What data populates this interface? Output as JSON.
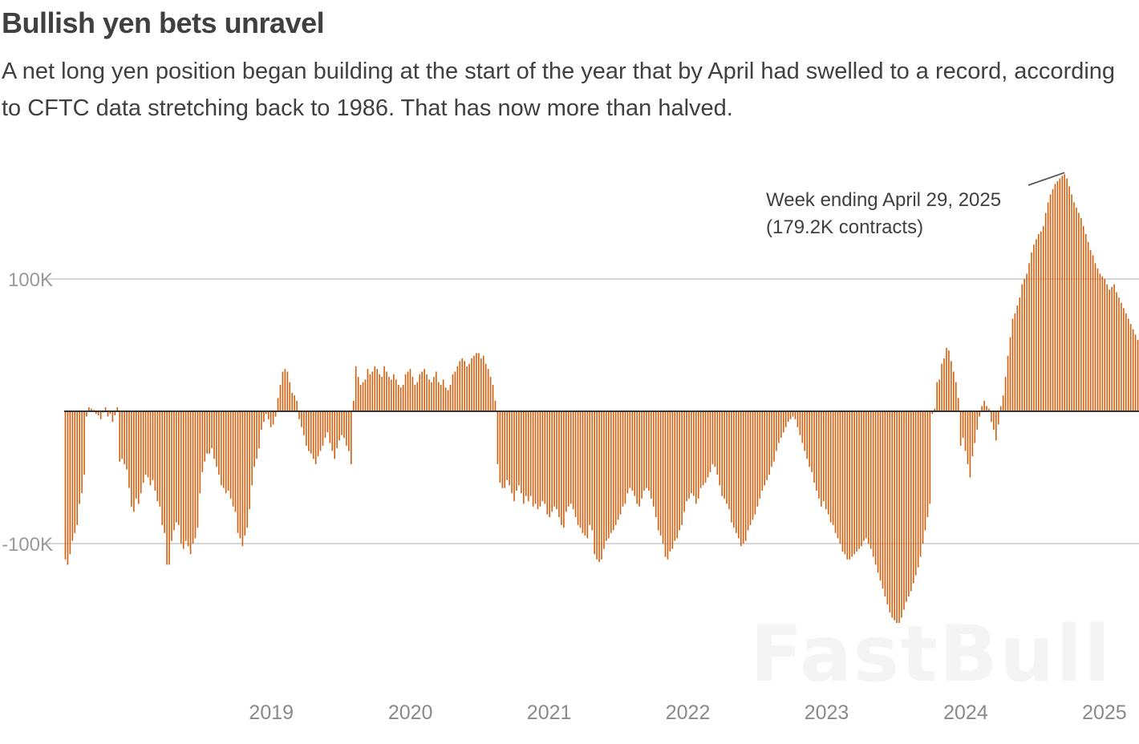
{
  "header": {
    "title": "Bullish yen bets unravel",
    "subtitle": "A net long yen position began building at the start of the year that by April had swelled to a record, according to CFTC data stretching back to 1986. That has now more than halved."
  },
  "watermark": {
    "text": "FastBull"
  },
  "chart_data": {
    "type": "bar",
    "title": "Bullish yen bets unravel",
    "ylim": [
      -170000,
      180000
    ],
    "y_ticks": [
      100000,
      -100000
    ],
    "y_tick_labels": [
      "100K",
      "-100K"
    ],
    "x_range": [
      "2018-01-02",
      "2025-09-30"
    ],
    "x_ticks": [
      "2019",
      "2020",
      "2021",
      "2022",
      "2023",
      "2024",
      "2025"
    ],
    "grid": true,
    "bar_color": "#d4600f",
    "zero_line_color": "#333333",
    "annotation": {
      "line1": "Week ending April 29, 2025",
      "line2": "(179.2K contracts)",
      "date": "2025-04-29",
      "value": 179200
    },
    "series": [
      {
        "start_date": "2018-01-02",
        "frequency": "weekly",
        "values": [
          -112000,
          -116000,
          -108000,
          -98000,
          -92000,
          -86000,
          -70000,
          -62000,
          -48000,
          -4000,
          3000,
          2000,
          1000,
          -2000,
          -3000,
          -6000,
          -1000,
          3000,
          -4000,
          -2000,
          -8000,
          -3000,
          3000,
          -38000,
          -36000,
          -40000,
          -44000,
          -58000,
          -72000,
          -76000,
          -66000,
          -70000,
          -62000,
          -54000,
          -48000,
          -50000,
          -56000,
          -52000,
          -60000,
          -68000,
          -72000,
          -86000,
          -92000,
          -116000,
          -116000,
          -98000,
          -90000,
          -84000,
          -86000,
          -100000,
          -104000,
          -98000,
          -102000,
          -108000,
          -100000,
          -96000,
          -88000,
          -62000,
          -46000,
          -38000,
          -32000,
          -32000,
          -28000,
          -36000,
          -42000,
          -48000,
          -56000,
          -58000,
          -62000,
          -60000,
          -66000,
          -72000,
          -76000,
          -92000,
          -96000,
          -102000,
          -94000,
          -88000,
          -74000,
          -56000,
          -42000,
          -36000,
          -28000,
          -14000,
          -8000,
          -2000,
          -6000,
          -12000,
          -10000,
          -4000,
          10000,
          20000,
          30000,
          32000,
          30000,
          22000,
          14000,
          12000,
          8000,
          -6000,
          -12000,
          -18000,
          -26000,
          -30000,
          -32000,
          -36000,
          -40000,
          -34000,
          -30000,
          -26000,
          -20000,
          -16000,
          -24000,
          -30000,
          -36000,
          -28000,
          -22000,
          -18000,
          -20000,
          -26000,
          -30000,
          -40000,
          8000,
          34000,
          26000,
          20000,
          22000,
          24000,
          32000,
          28000,
          30000,
          34000,
          32000,
          28000,
          26000,
          34000,
          30000,
          26000,
          24000,
          28000,
          24000,
          20000,
          18000,
          20000,
          28000,
          30000,
          32000,
          26000,
          20000,
          22000,
          28000,
          30000,
          32000,
          28000,
          24000,
          22000,
          26000,
          30000,
          22000,
          20000,
          24000,
          18000,
          16000,
          20000,
          28000,
          30000,
          34000,
          38000,
          40000,
          38000,
          34000,
          36000,
          40000,
          42000,
          44000,
          44000,
          40000,
          42000,
          36000,
          32000,
          26000,
          20000,
          8000,
          -40000,
          -54000,
          -58000,
          -58000,
          -52000,
          -56000,
          -62000,
          -68000,
          -60000,
          -56000,
          -62000,
          -70000,
          -64000,
          -68000,
          -64000,
          -72000,
          -70000,
          -74000,
          -72000,
          -68000,
          -70000,
          -78000,
          -80000,
          -76000,
          -72000,
          -74000,
          -80000,
          -86000,
          -88000,
          -76000,
          -72000,
          -70000,
          -74000,
          -80000,
          -86000,
          -88000,
          -92000,
          -94000,
          -96000,
          -86000,
          -90000,
          -108000,
          -112000,
          -114000,
          -112000,
          -104000,
          -98000,
          -96000,
          -92000,
          -90000,
          -86000,
          -82000,
          -78000,
          -72000,
          -70000,
          -62000,
          -58000,
          -60000,
          -64000,
          -70000,
          -72000,
          -66000,
          -60000,
          -58000,
          -60000,
          -66000,
          -72000,
          -80000,
          -90000,
          -94000,
          -100000,
          -110000,
          -112000,
          -106000,
          -104000,
          -98000,
          -96000,
          -90000,
          -86000,
          -76000,
          -68000,
          -66000,
          -62000,
          -64000,
          -70000,
          -66000,
          -58000,
          -56000,
          -54000,
          -50000,
          -46000,
          -40000,
          -42000,
          -48000,
          -56000,
          -64000,
          -66000,
          -70000,
          -74000,
          -84000,
          -88000,
          -92000,
          -96000,
          -102000,
          -100000,
          -98000,
          -90000,
          -86000,
          -82000,
          -78000,
          -72000,
          -66000,
          -60000,
          -56000,
          -52000,
          -48000,
          -42000,
          -38000,
          -30000,
          -24000,
          -20000,
          -16000,
          -12000,
          -8000,
          -6000,
          -4000,
          -6000,
          -12000,
          -18000,
          -24000,
          -30000,
          -36000,
          -42000,
          -46000,
          -54000,
          -60000,
          -66000,
          -72000,
          -68000,
          -74000,
          -78000,
          -84000,
          -86000,
          -92000,
          -96000,
          -100000,
          -106000,
          -108000,
          -112000,
          -112000,
          -110000,
          -108000,
          -106000,
          -104000,
          -102000,
          -98000,
          -96000,
          -100000,
          -104000,
          -110000,
          -116000,
          -122000,
          -128000,
          -134000,
          -140000,
          -146000,
          -152000,
          -156000,
          -158000,
          -160000,
          -160000,
          -156000,
          -150000,
          -144000,
          -140000,
          -136000,
          -130000,
          -124000,
          -118000,
          -110000,
          -100000,
          -90000,
          -80000,
          -70000,
          -2000,
          2000,
          22000,
          24000,
          36000,
          40000,
          48000,
          46000,
          38000,
          30000,
          22000,
          10000,
          -26000,
          -20000,
          -30000,
          -40000,
          -50000,
          -34000,
          -24000,
          -14000,
          -4000,
          4000,
          8000,
          4000,
          2000,
          -8000,
          -14000,
          -22000,
          -10000,
          4000,
          12000,
          26000,
          42000,
          56000,
          70000,
          74000,
          80000,
          86000,
          96000,
          100000,
          104000,
          112000,
          120000,
          126000,
          130000,
          134000,
          136000,
          140000,
          150000,
          158000,
          164000,
          168000,
          172000,
          174000,
          176000,
          178000,
          179200,
          176000,
          170000,
          164000,
          158000,
          154000,
          150000,
          146000,
          140000,
          134000,
          128000,
          122000,
          118000,
          112000,
          108000,
          104000,
          102000,
          100000,
          96000,
          92000,
          94000,
          96000,
          90000,
          86000,
          82000,
          78000,
          74000,
          70000,
          66000,
          62000,
          58000,
          54000
        ]
      }
    ]
  }
}
